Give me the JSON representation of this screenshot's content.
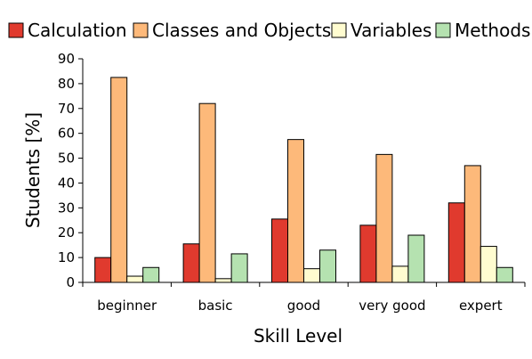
{
  "chart_data": {
    "type": "bar",
    "title": "",
    "xlabel": "Skill Level",
    "ylabel": "Students [%]",
    "ylim": [
      0,
      90
    ],
    "yticks": [
      0,
      10,
      20,
      30,
      40,
      50,
      60,
      70,
      80,
      90
    ],
    "grid": false,
    "legend_position": "top",
    "categories": [
      "beginner",
      "basic",
      "good",
      "very good",
      "expert"
    ],
    "series": [
      {
        "name": "Calculation",
        "color": "#e03a2e",
        "values": [
          10,
          15.5,
          25.5,
          23,
          32
        ]
      },
      {
        "name": "Classes and Objects",
        "color": "#fdb97a",
        "values": [
          82.5,
          72,
          57.5,
          51.5,
          47
        ]
      },
      {
        "name": "Variables",
        "color": "#fffcd0",
        "values": [
          2.5,
          1.5,
          5.5,
          6.5,
          14.5
        ]
      },
      {
        "name": "Methods",
        "color": "#b5e2b0",
        "values": [
          6,
          11.5,
          13,
          19,
          6
        ]
      }
    ]
  }
}
